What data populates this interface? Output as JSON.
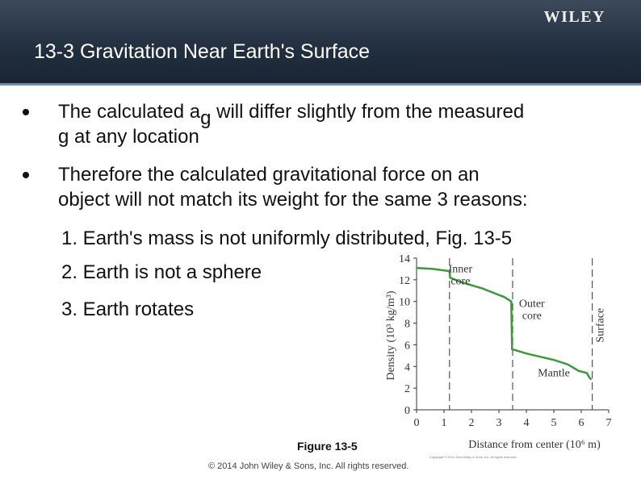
{
  "header": {
    "logo": "WILEY",
    "title": "13-3  Gravitation Near Earth's Surface"
  },
  "bullets": [
    {
      "before": "The calculated a",
      "sub": "g",
      "after": " will differ slightly from the measured",
      "line2": "g at any location"
    },
    {
      "line1": "Therefore the calculated gravitational force on an",
      "line2": "object will not match its weight for the same 3 reasons:"
    }
  ],
  "reasons": [
    "1. Earth's mass is not uniformly distributed, Fig. 13-5",
    "2. Earth is not a sphere",
    "3. Earth rotates"
  ],
  "figure": {
    "caption": "Figure 13-5",
    "copyright_small": "Copyright © 2014 John Wiley & Sons, Inc. All rights reserved.",
    "copyright": "© 2014 John Wiley & Sons, Inc. All rights reserved."
  },
  "chart_data": {
    "type": "line",
    "xlabel": "Distance from center (10⁶ m)",
    "ylabel": "Density (10³ kg/m³)",
    "xlim": [
      0,
      7
    ],
    "ylim": [
      0,
      14
    ],
    "xticks": [
      0,
      1,
      2,
      3,
      4,
      5,
      6,
      7
    ],
    "yticks": [
      0,
      2,
      4,
      6,
      8,
      10,
      12,
      14
    ],
    "regions": [
      {
        "label": "Inner core",
        "boundary_x": 1.2
      },
      {
        "label": "Outer core",
        "boundary_x": 3.5
      },
      {
        "label": "Mantle",
        "boundary_x": 6.4
      },
      {
        "label": "Surface",
        "boundary_x": 6.4
      }
    ],
    "line_color": "#3a9a3a",
    "series": [
      {
        "points": [
          [
            0,
            13.1
          ],
          [
            0.6,
            13.0
          ],
          [
            1.2,
            12.8
          ],
          [
            1.22,
            12.2
          ],
          [
            1.6,
            11.8
          ],
          [
            2.0,
            11.5
          ],
          [
            2.4,
            11.2
          ],
          [
            2.8,
            10.8
          ],
          [
            3.2,
            10.4
          ],
          [
            3.45,
            10.0
          ],
          [
            3.48,
            5.6
          ],
          [
            3.6,
            5.5
          ],
          [
            4.0,
            5.2
          ],
          [
            4.5,
            4.9
          ],
          [
            5.0,
            4.6
          ],
          [
            5.5,
            4.2
          ],
          [
            5.7,
            3.9
          ],
          [
            5.9,
            3.6
          ],
          [
            6.2,
            3.4
          ],
          [
            6.32,
            2.9
          ],
          [
            6.37,
            2.8
          ]
        ]
      }
    ]
  }
}
